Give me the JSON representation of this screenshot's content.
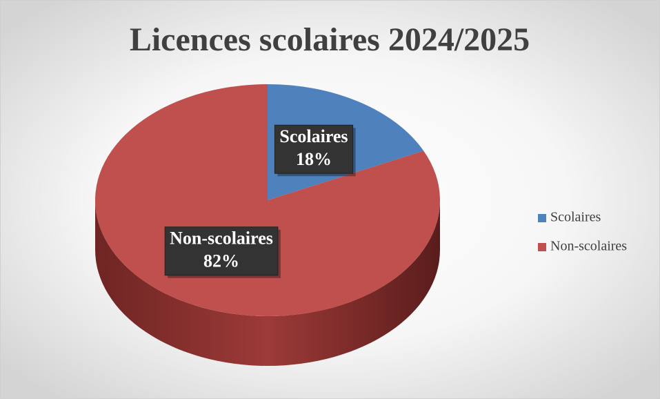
{
  "chart_data": {
    "type": "pie",
    "title": "Licences scolaires 2024/2025",
    "categories": [
      "Scolaires",
      "Non-scolaires"
    ],
    "values": [
      18,
      82
    ],
    "value_labels": [
      "18%",
      "82%"
    ],
    "colors": [
      "#4f81bd",
      "#c0504d"
    ],
    "legend": "right"
  }
}
